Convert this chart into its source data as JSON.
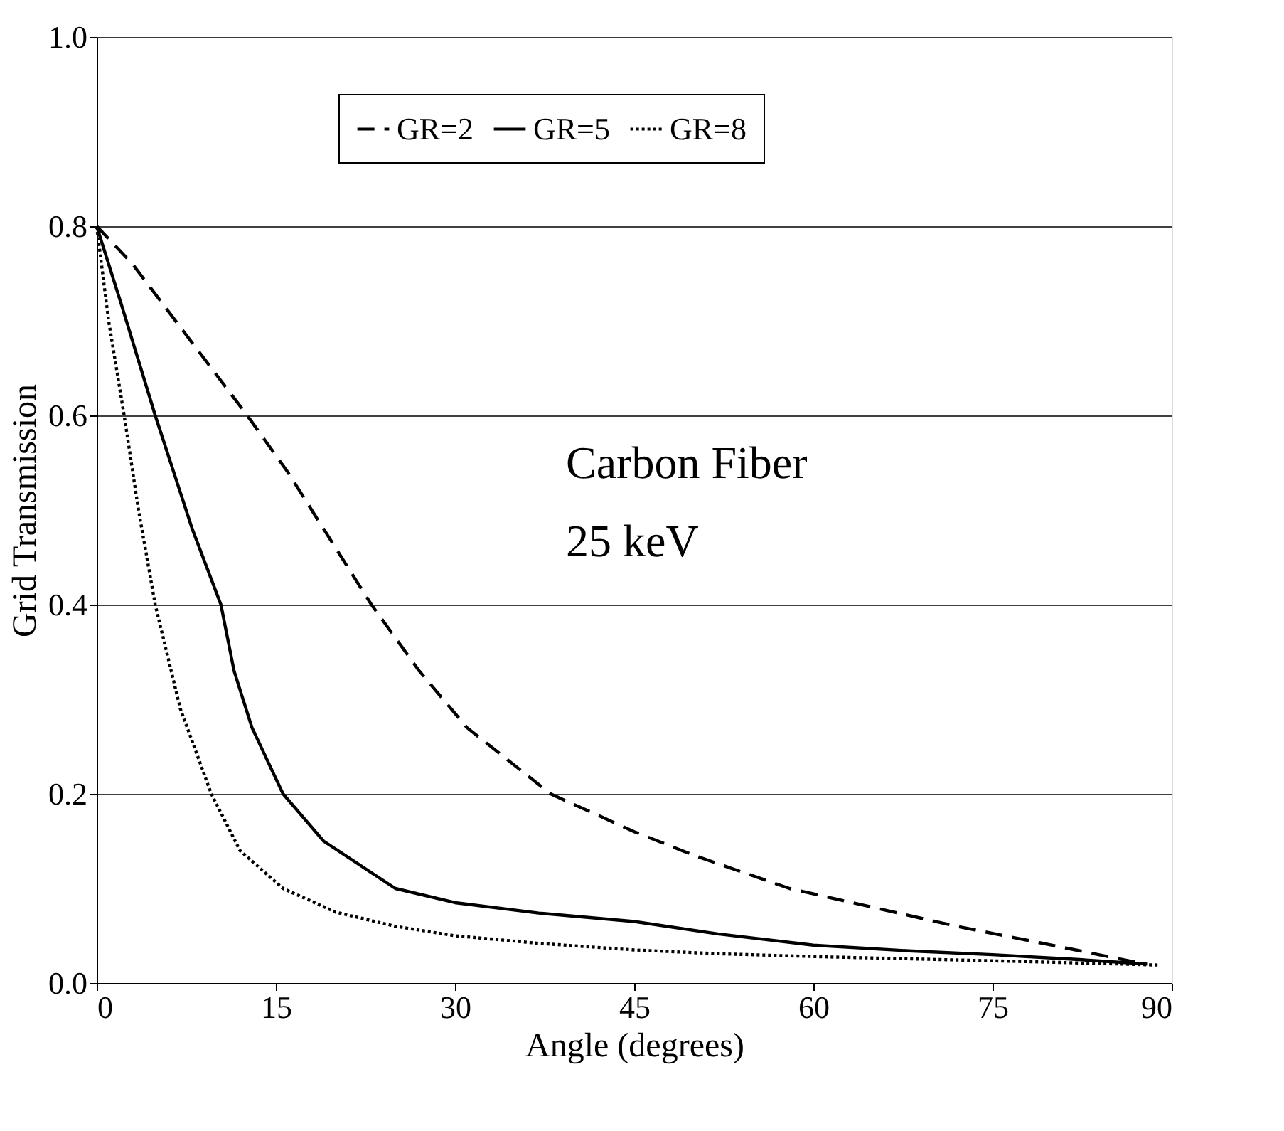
{
  "chart_data": {
    "type": "line",
    "xlabel": "Angle (degrees)",
    "ylabel": "Grid Transmission",
    "xlim": [
      0,
      90
    ],
    "xticks": [
      0,
      15,
      30,
      45,
      60,
      75,
      90
    ],
    "ylim": [
      0,
      1
    ],
    "yticks": [
      {
        "value": 0,
        "label": "0.0"
      },
      0.2,
      0.4,
      0.6,
      0.8,
      {
        "value": 1,
        "label": "1.0"
      }
    ],
    "grid": "y",
    "legend": "top",
    "annotations": [
      "Carbon Fiber",
      "25 keV"
    ],
    "series": [
      {
        "name": "GR=2",
        "color": "#000000",
        "line_style": "dashed",
        "x": [
          0,
          3,
          6,
          9,
          12.6,
          16,
          20,
          23,
          27,
          31,
          38,
          45,
          50,
          58,
          65,
          72,
          80,
          87
        ],
        "values": [
          0.8,
          0.76,
          0.71,
          0.66,
          0.6,
          0.54,
          0.46,
          0.4,
          0.33,
          0.27,
          0.2,
          0.16,
          0.135,
          0.1,
          0.08,
          0.06,
          0.04,
          0.022
        ]
      },
      {
        "name": "GR=5",
        "color": "#000000",
        "line_style": "solid",
        "x": [
          0,
          2,
          4.9,
          8,
          10.4,
          11.5,
          13,
          15.6,
          19,
          25,
          30,
          37,
          45,
          52,
          60,
          68,
          75,
          82,
          88
        ],
        "values": [
          0.8,
          0.72,
          0.6,
          0.48,
          0.4,
          0.33,
          0.27,
          0.2,
          0.15,
          0.1,
          0.085,
          0.074,
          0.065,
          0.052,
          0.04,
          0.034,
          0.03,
          0.025,
          0.02
        ]
      },
      {
        "name": "GR=8",
        "color": "#000000",
        "line_style": "dotted",
        "x": [
          0,
          1,
          2.3,
          3.5,
          4.9,
          7,
          9.6,
          12,
          15.6,
          20,
          25,
          30,
          37,
          45,
          52,
          60,
          70,
          80,
          89
        ],
        "values": [
          0.8,
          0.7,
          0.6,
          0.5,
          0.4,
          0.29,
          0.2,
          0.14,
          0.1,
          0.075,
          0.06,
          0.05,
          0.042,
          0.035,
          0.031,
          0.028,
          0.025,
          0.022,
          0.019
        ]
      }
    ]
  }
}
